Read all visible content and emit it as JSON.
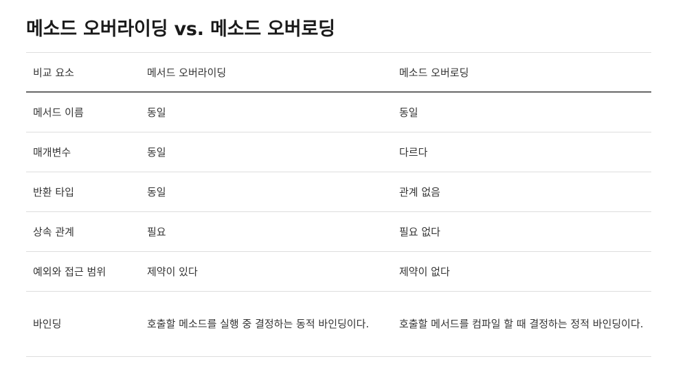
{
  "title": "메소드 오버라이딩 vs. 메소드 오버로딩",
  "table": {
    "headers": [
      "비교 요소",
      "메서드 오버라이딩",
      "메소드 오버로딩"
    ],
    "rows": [
      [
        "메서드 이름",
        "동일",
        "동일"
      ],
      [
        "매개변수",
        "동일",
        "다르다"
      ],
      [
        "반환 타입",
        "동일",
        "관계 없음"
      ],
      [
        "상속 관계",
        "필요",
        "필요 없다"
      ],
      [
        "예외와 접근 범위",
        "제약이 있다",
        "제약이 없다"
      ],
      [
        "바인딩",
        "호출할 메소드를 실행 중 결정하는 동적 바인딩이다.",
        "호출할 메서드를 컴파일 할 때 결정하는 정적 바인딩이다."
      ]
    ]
  }
}
